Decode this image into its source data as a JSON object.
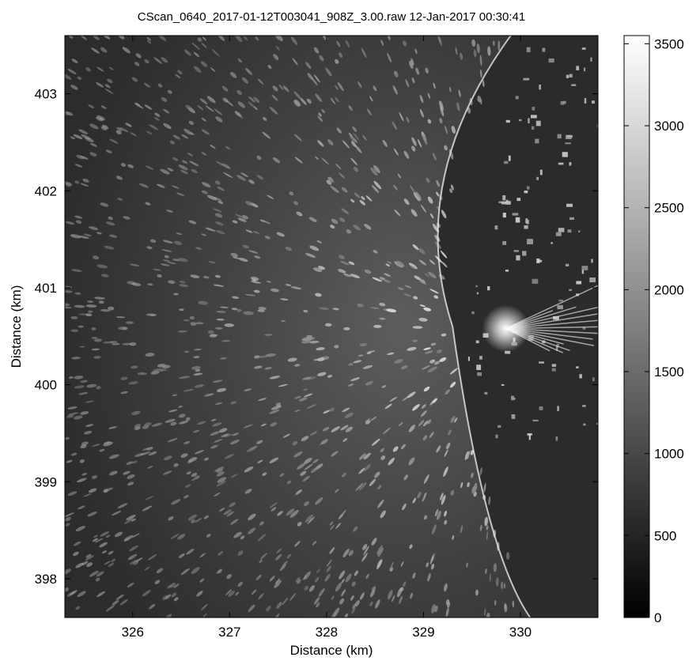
{
  "chart_data": {
    "type": "heatmap",
    "title": "CScan_0640_2017-01-12T003041_908Z_3.00.raw 12-Jan-2017 00:30:41",
    "xlabel": "Distance (km)",
    "ylabel": "Distance (km)",
    "x_ticks": [
      326,
      327,
      328,
      329,
      330
    ],
    "y_ticks": [
      398,
      399,
      400,
      401,
      402,
      403
    ],
    "xlim": [
      325.3,
      330.8
    ],
    "ylim": [
      397.6,
      403.6
    ],
    "colorbar": {
      "ticks": [
        0,
        500,
        1000,
        1500,
        2000,
        2500,
        3000,
        3500
      ],
      "range": [
        0,
        3550
      ],
      "colormap": "gray",
      "low_color": "#000000",
      "high_color": "#ffffff"
    },
    "features": {
      "coast_x_km": [
        329.9,
        329.3,
        330.1
      ],
      "coast_y_km": [
        403.6,
        400.6,
        397.6
      ],
      "bright_source_x_km": 329.85,
      "bright_source_y_km": 400.58,
      "sea_brightness": 1300,
      "land_brightness": 350
    },
    "grid": false
  }
}
